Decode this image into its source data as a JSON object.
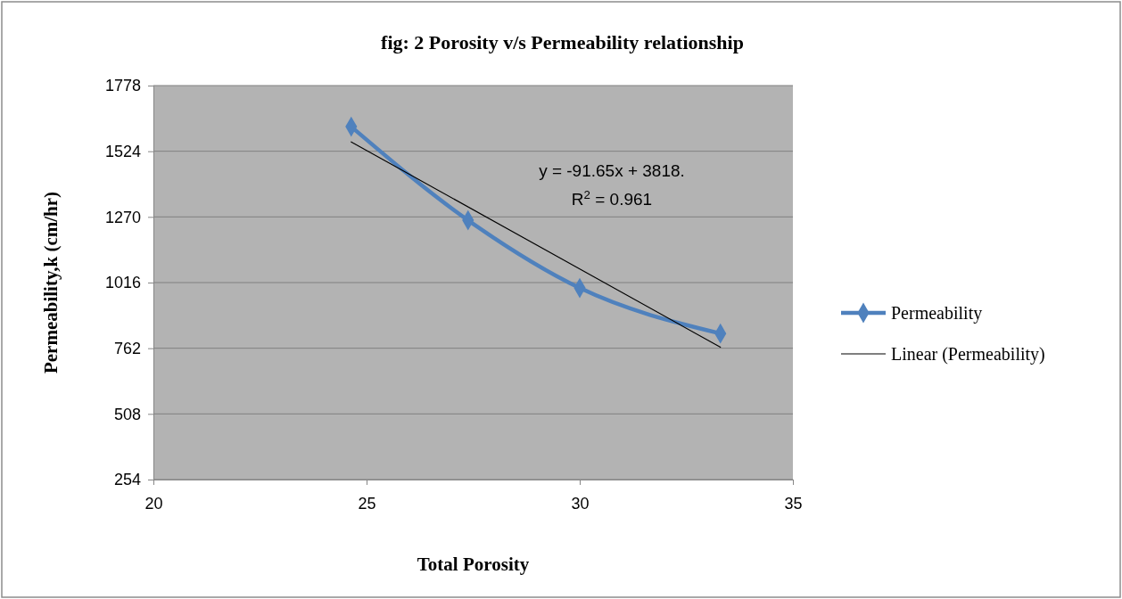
{
  "chart_data": {
    "type": "line",
    "title": "fig: 2 Porosity v/s Permeability relationship",
    "xlabel": "Total Porosity",
    "ylabel": "Permeability,k (cm/hr)",
    "xlim": [
      20,
      35
    ],
    "xticks": [
      20,
      25,
      30,
      35
    ],
    "ylim": [
      254,
      1778
    ],
    "yticks": [
      254,
      508,
      762,
      1016,
      1270,
      1524,
      1778
    ],
    "grid": "y",
    "legend": "right",
    "series": [
      {
        "name": "Permeability",
        "color": "#4f81bd",
        "marker": "diamond",
        "x": [
          24.64,
          27.38,
          30.0,
          33.3
        ],
        "values": [
          1619,
          1257,
          995,
          819
        ]
      },
      {
        "name": "Linear (Permeability)",
        "color": "#000000",
        "marker": "none",
        "x": [
          24.64,
          33.3
        ],
        "values": [
          1560,
          766
        ]
      }
    ],
    "annotations": [
      "y = -91.65x + 3818.",
      "R$^{2}$ = 0.961"
    ]
  }
}
